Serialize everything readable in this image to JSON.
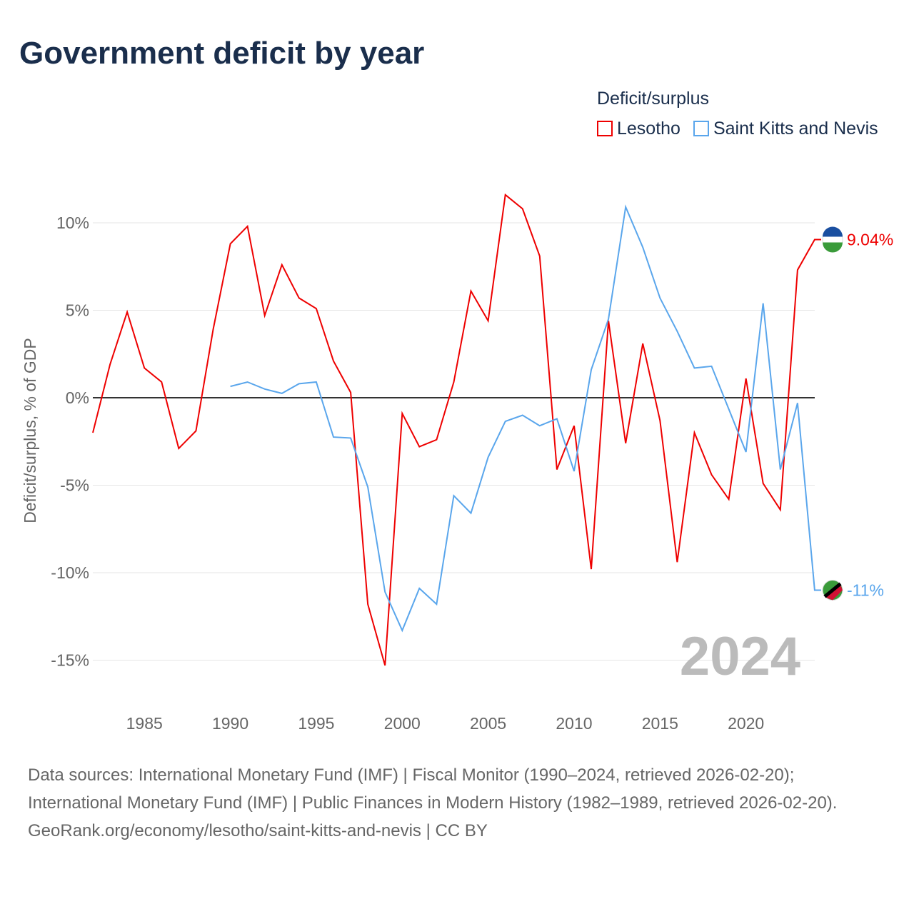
{
  "title": "Government deficit by year",
  "legend": {
    "title": "Deficit/surplus",
    "items": [
      "Lesotho",
      "Saint Kitts and Nevis"
    ]
  },
  "footer": {
    "line1": "Data sources: International Monetary Fund (IMF) | Fiscal Monitor (1990–2024, retrieved 2026-02-20); International Monetary Fund (IMF) | Public Finances in Modern History (1982–1989, retrieved 2026-02-20).",
    "line2": "GeoRank.org/economy/lesotho/saint-kitts-and-nevis | CC BY"
  },
  "chart_data": {
    "type": "line",
    "title": "Government deficit by year",
    "xlabel": "",
    "ylabel": "Deficit/surplus, % of GDP",
    "ylim": [
      -15,
      10
    ],
    "xlim": [
      1982,
      2024
    ],
    "yticks": [
      10,
      5,
      0,
      -5,
      -10,
      -15
    ],
    "ytick_labels": [
      "10%",
      "5%",
      "0%",
      "-5%",
      "-10%",
      "-15%"
    ],
    "xticks": [
      1985,
      1990,
      1995,
      2000,
      2005,
      2010,
      2015,
      2020
    ],
    "year_label": "2024",
    "series": [
      {
        "name": "Lesotho",
        "color": "#ee0000",
        "end_label": "9.04%",
        "x_start": 1982,
        "values": [
          -2.0,
          1.9,
          4.9,
          1.7,
          0.9,
          -2.9,
          -1.9,
          3.9,
          8.8,
          9.8,
          4.7,
          7.6,
          5.7,
          5.1,
          2.1,
          0.3,
          -11.8,
          -15.3,
          -0.9,
          -2.8,
          -2.4,
          0.9,
          6.1,
          4.4,
          11.6,
          10.8,
          8.1,
          -4.1,
          -1.6,
          -9.8,
          4.4,
          -2.6,
          3.1,
          -1.3,
          -9.4,
          -2.0,
          -4.4,
          -5.8,
          1.1,
          -4.9,
          -6.4,
          7.3,
          9.04
        ]
      },
      {
        "name": "Saint Kitts and Nevis",
        "color": "#5aa6ec",
        "end_label": "-11%",
        "x_start": 1990,
        "values": [
          0.65,
          0.9,
          0.5,
          0.25,
          0.8,
          0.9,
          -2.25,
          -2.3,
          -5.1,
          -11.1,
          -13.3,
          -10.9,
          -11.8,
          -5.6,
          -6.6,
          -3.4,
          -1.35,
          -1.0,
          -1.6,
          -1.2,
          -4.2,
          1.6,
          4.5,
          10.9,
          8.6,
          5.7,
          3.8,
          1.7,
          1.8,
          -0.65,
          -3.1,
          5.4,
          -4.1,
          -0.3,
          -11.0
        ]
      }
    ]
  }
}
